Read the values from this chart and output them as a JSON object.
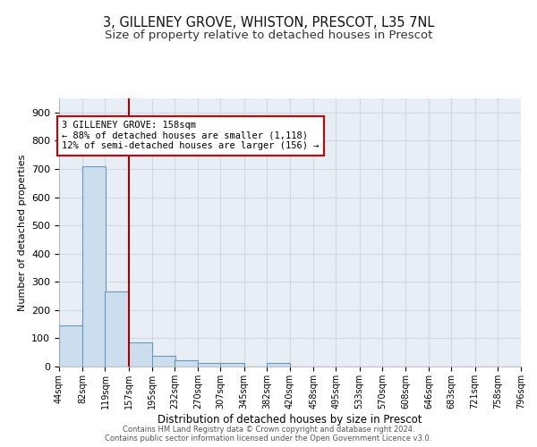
{
  "title1": "3, GILLENEY GROVE, WHISTON, PRESCOT, L35 7NL",
  "title2": "Size of property relative to detached houses in Prescot",
  "xlabel": "Distribution of detached houses by size in Prescot",
  "ylabel": "Number of detached properties",
  "bin_edges": [
    44,
    82,
    119,
    157,
    195,
    232,
    270,
    307,
    345,
    382,
    420,
    458,
    495,
    533,
    570,
    608,
    646,
    683,
    721,
    758,
    796
  ],
  "bar_heights": [
    145,
    710,
    265,
    85,
    38,
    22,
    12,
    12,
    0,
    12,
    0,
    0,
    0,
    0,
    0,
    0,
    0,
    0,
    0,
    0
  ],
  "bar_color": "#ccdded",
  "bar_edge_color": "#6699bb",
  "property_line_x": 157,
  "property_line_color": "#aa0000",
  "ylim": [
    0,
    950
  ],
  "yticks": [
    0,
    100,
    200,
    300,
    400,
    500,
    600,
    700,
    800,
    900
  ],
  "annotation_line1": "3 GILLENEY GROVE: 158sqm",
  "annotation_line2": "← 88% of detached houses are smaller (1,118)",
  "annotation_line3": "12% of semi-detached houses are larger (156) →",
  "annotation_box_color": "#ffffff",
  "annotation_box_edge": "#cc0000",
  "footer1": "Contains HM Land Registry data © Crown copyright and database right 2024.",
  "footer2": "Contains public sector information licensed under the Open Government Licence v3.0.",
  "background_color": "#e8eef5",
  "grid_color": "#d0d8e4",
  "title1_fontsize": 10.5,
  "title2_fontsize": 9.5,
  "tick_label_fontsize": 7,
  "ylabel_fontsize": 8,
  "xlabel_fontsize": 8.5,
  "tick_labels": [
    "44sqm",
    "82sqm",
    "119sqm",
    "157sqm",
    "195sqm",
    "232sqm",
    "270sqm",
    "307sqm",
    "345sqm",
    "382sqm",
    "420sqm",
    "458sqm",
    "495sqm",
    "533sqm",
    "570sqm",
    "608sqm",
    "646sqm",
    "683sqm",
    "721sqm",
    "758sqm",
    "796sqm"
  ]
}
